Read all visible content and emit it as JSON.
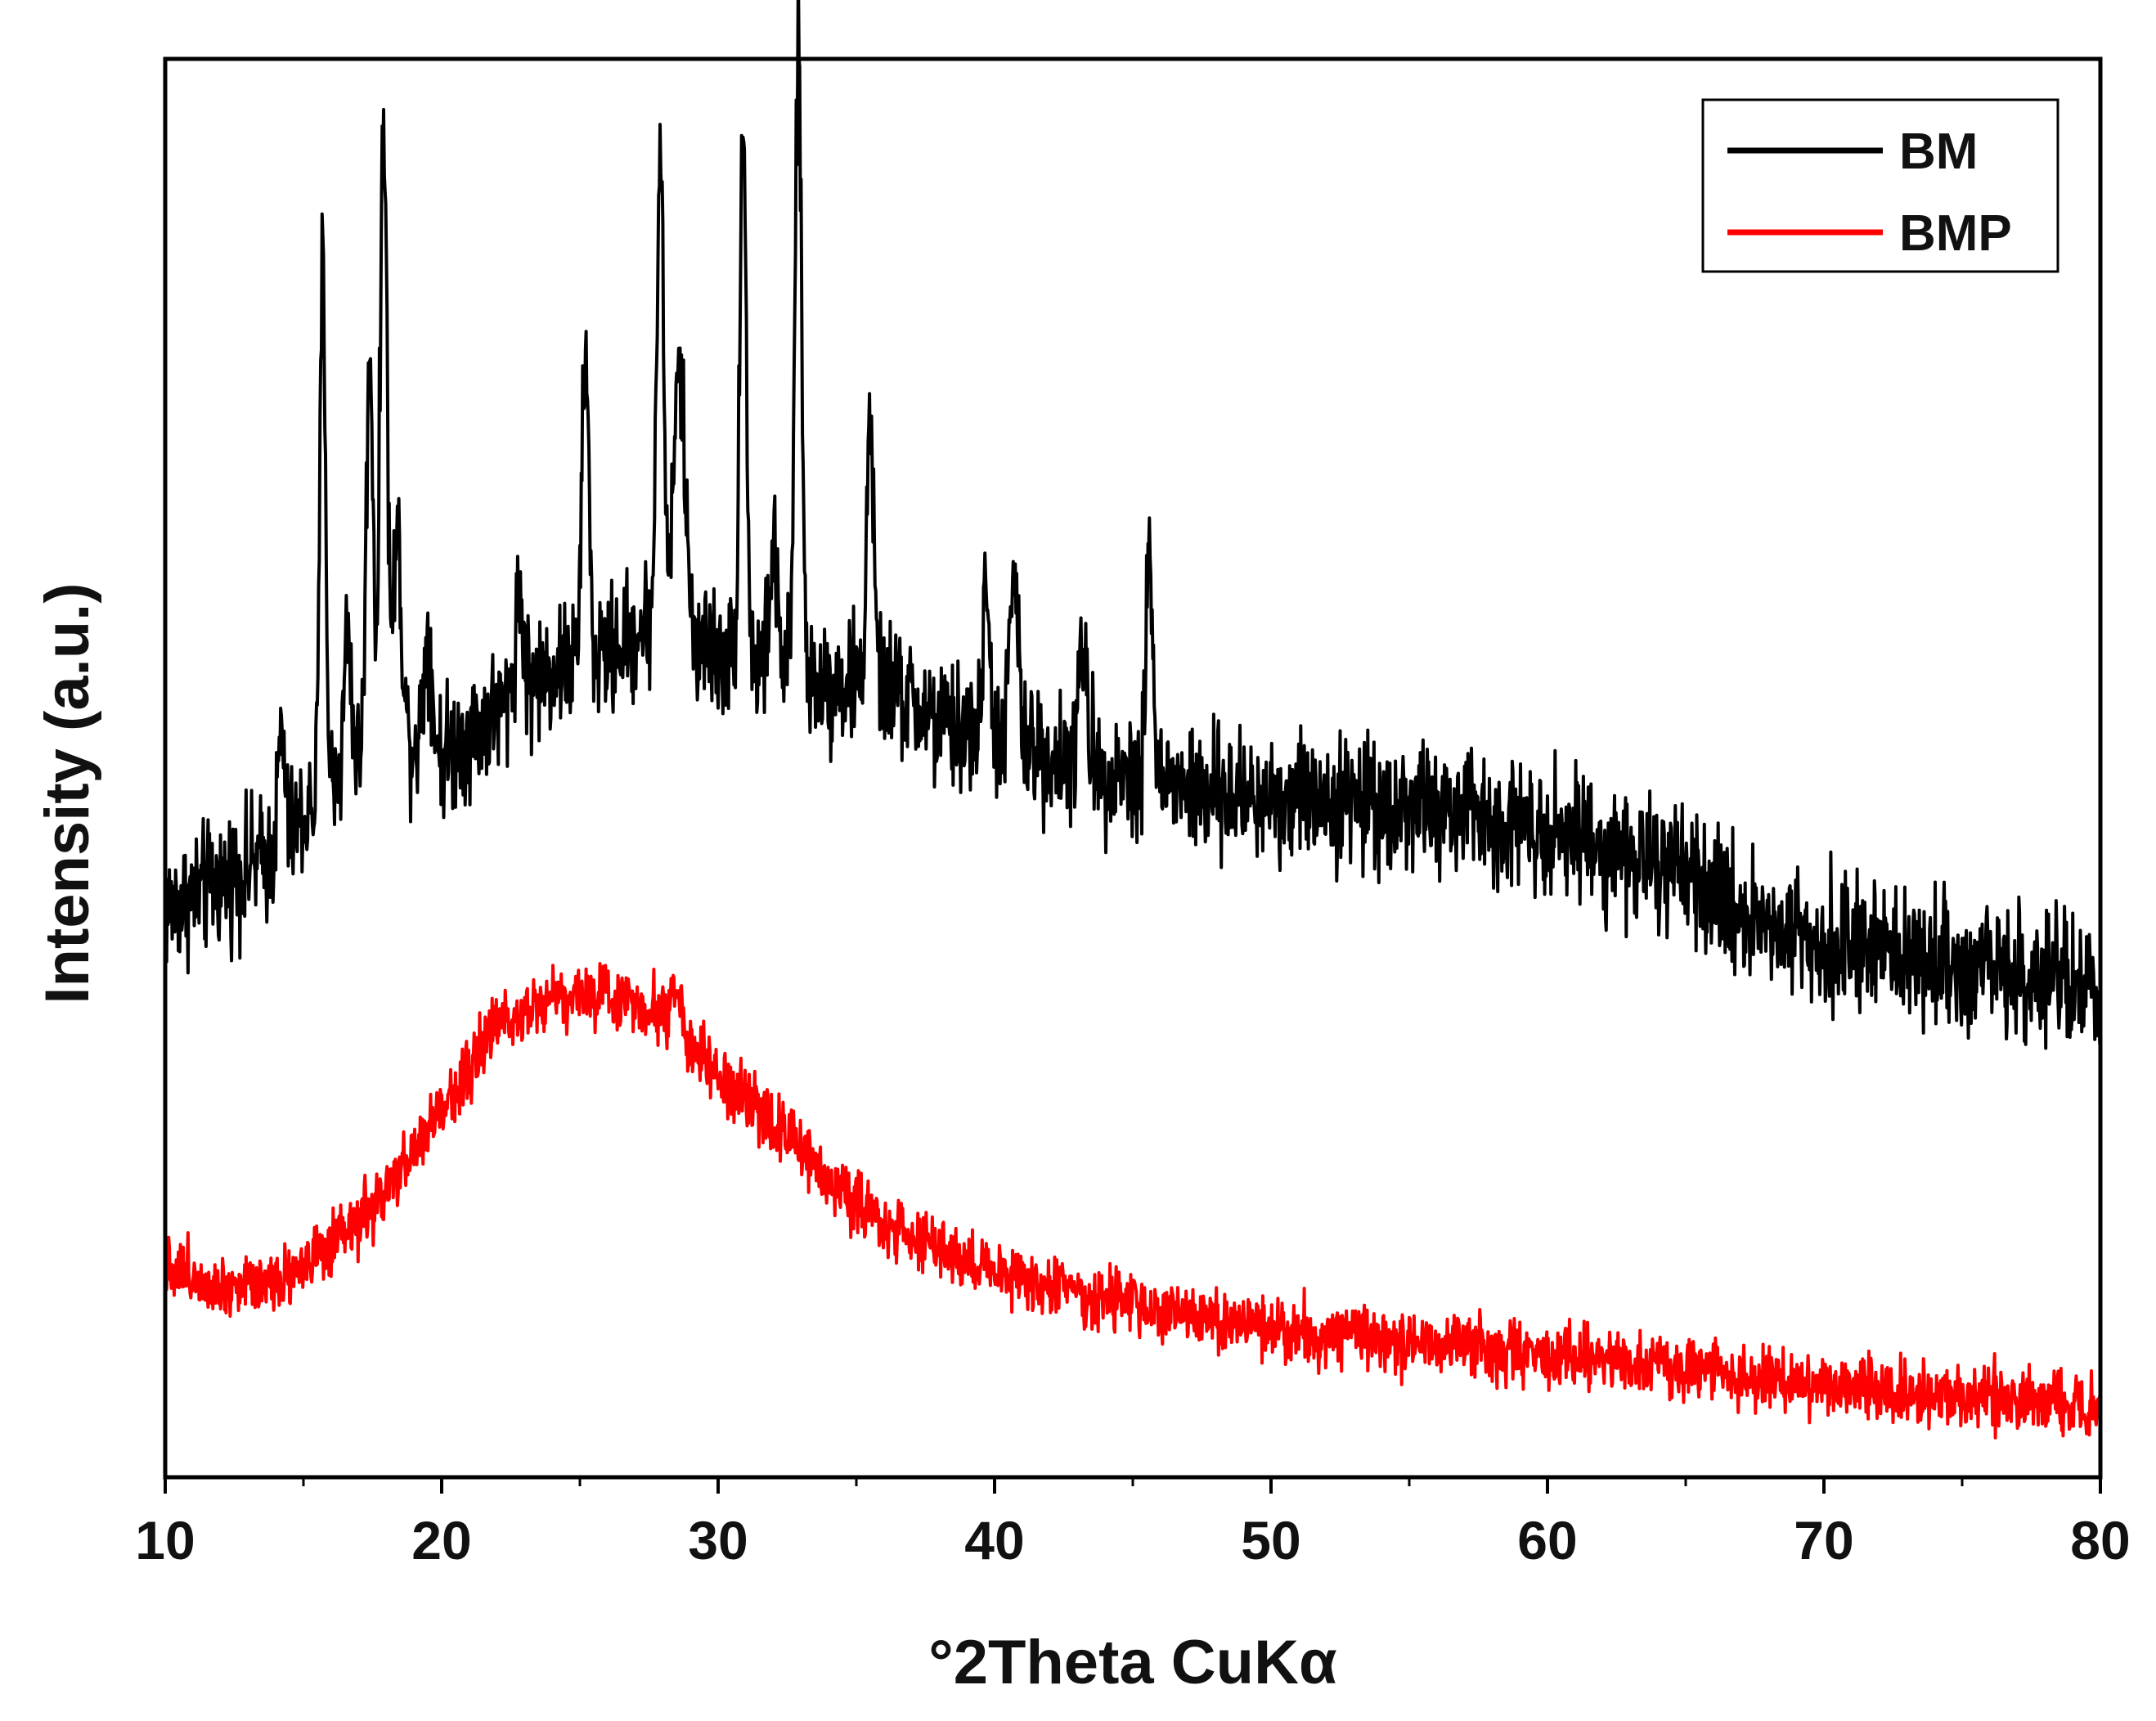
{
  "chart_data": {
    "type": "line",
    "xlabel": "°2Theta CuKα",
    "ylabel": "Intensity (a.u.)",
    "xlim": [
      10,
      80
    ],
    "ylim": [
      0,
      100
    ],
    "x_ticks": [
      "10",
      "20",
      "30",
      "40",
      "50",
      "60",
      "70",
      "80"
    ],
    "y_ticks_labeled": false,
    "grid": false,
    "legend_position": "top-right",
    "series": [
      {
        "name": "BM",
        "color": "#000000",
        "noise": 4.5,
        "profile": [
          [
            10,
            40
          ],
          [
            12,
            42
          ],
          [
            14,
            44
          ],
          [
            16,
            49
          ],
          [
            18,
            53
          ],
          [
            20,
            51
          ],
          [
            22,
            54
          ],
          [
            24,
            57
          ],
          [
            26,
            58
          ],
          [
            28,
            61
          ],
          [
            30,
            58
          ],
          [
            32,
            57
          ],
          [
            34,
            56
          ],
          [
            36,
            56
          ],
          [
            38,
            53
          ],
          [
            40,
            52
          ],
          [
            44,
            50
          ],
          [
            48,
            48
          ],
          [
            52,
            48
          ],
          [
            56,
            47
          ],
          [
            60,
            46
          ],
          [
            64,
            43
          ],
          [
            68,
            39
          ],
          [
            72,
            37
          ],
          [
            76,
            36
          ],
          [
            80,
            34
          ]
        ],
        "peaks": [
          [
            14.2,
            8,
            0.12
          ],
          [
            15.7,
            38,
            0.1
          ],
          [
            16.6,
            10,
            0.12
          ],
          [
            17.4,
            28,
            0.12
          ],
          [
            17.9,
            44,
            0.12
          ],
          [
            18.4,
            14,
            0.15
          ],
          [
            19.5,
            8,
            0.15
          ],
          [
            22.8,
            7,
            0.15
          ],
          [
            25.2,
            22,
            0.12
          ],
          [
            27.9,
            33,
            0.12
          ],
          [
            28.6,
            18,
            0.2
          ],
          [
            30.9,
            38,
            0.12
          ],
          [
            32.0,
            8,
            0.15
          ],
          [
            32.9,
            44,
            0.12
          ],
          [
            35.5,
            19,
            0.12
          ],
          [
            39.7,
            9,
            0.15
          ],
          [
            40.7,
            12,
            0.15
          ],
          [
            43.2,
            8,
            0.15
          ],
          [
            45.6,
            17,
            0.12
          ]
        ]
      },
      {
        "name": "BMP",
        "color": "#ff0000",
        "noise": 2.2,
        "profile": [
          [
            10,
            15
          ],
          [
            12,
            13.5
          ],
          [
            14,
            14
          ],
          [
            16,
            16
          ],
          [
            18,
            20
          ],
          [
            20,
            26
          ],
          [
            22,
            32
          ],
          [
            24,
            34
          ],
          [
            26,
            34
          ],
          [
            28,
            33
          ],
          [
            30,
            28
          ],
          [
            32,
            25
          ],
          [
            34,
            21
          ],
          [
            36,
            18
          ],
          [
            38,
            16
          ],
          [
            40,
            14.5
          ],
          [
            44,
            12.5
          ],
          [
            48,
            11
          ],
          [
            52,
            10
          ],
          [
            56,
            9.5
          ],
          [
            60,
            8.5
          ],
          [
            64,
            8
          ],
          [
            68,
            7
          ],
          [
            72,
            6
          ],
          [
            76,
            5.5
          ],
          [
            80,
            5
          ]
        ],
        "peaks": [
          [
            28.5,
            3,
            0.15
          ]
        ]
      }
    ]
  }
}
